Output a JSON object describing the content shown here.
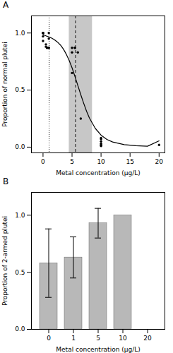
{
  "chart_data": [
    {
      "type": "line",
      "title": "A",
      "xlabel": "Metal concentration (μg/L)",
      "ylabel": "Proportion of normal plutei",
      "xlim": [
        -2,
        21
      ],
      "ylim": [
        -0.05,
        1.15
      ],
      "xticks": [
        0,
        5,
        10,
        15,
        20
      ],
      "yticks": [
        {
          "value": 0.0,
          "label": "0.0"
        },
        0.5,
        {
          "value": 1.0,
          "label": "1.0"
        }
      ],
      "span": {
        "x": [
          4.5,
          8.5
        ],
        "color": "#999999"
      },
      "vlines": [
        {
          "x": 5.6,
          "line_style": "dashed",
          "color": "#000000"
        },
        {
          "x": 1.05,
          "line_style": "dotted",
          "color": "#000000"
        }
      ],
      "series": [
        {
          "type": "line",
          "color": "#000000",
          "x": [
            0.01,
            0.5,
            1.0,
            1.5,
            2.0,
            2.5,
            3.0,
            3.5,
            4.0,
            4.5,
            5.0,
            5.5,
            6.0,
            6.5,
            7.0,
            7.5,
            8.0,
            9.0,
            10.0,
            11.0,
            12.0,
            14.0,
            16.0,
            18.0,
            20.0
          ],
          "values": [
            0.985,
            0.975,
            0.965,
            0.955,
            0.94,
            0.92,
            0.895,
            0.86,
            0.815,
            0.76,
            0.695,
            0.62,
            0.54,
            0.46,
            0.385,
            0.315,
            0.255,
            0.165,
            0.105,
            0.068,
            0.045,
            0.022,
            0.013,
            0.008,
            0.055
          ]
        },
        {
          "type": "scatter",
          "color": "#000000",
          "x": [
            0.0,
            0.0,
            0.0,
            0.0,
            0.0,
            0.5,
            0.5,
            0.7,
            0.7,
            1.0,
            1.0,
            1.0,
            1.0,
            5.0,
            5.0,
            5.0,
            5.5,
            5.5,
            6.0,
            6.5,
            10.0,
            10.0,
            10.0,
            10.0,
            10.0,
            10.0,
            20.0
          ],
          "values": [
            1.0,
            1.0,
            1.0,
            0.97,
            0.93,
            0.9,
            0.88,
            0.87,
            0.87,
            0.87,
            0.87,
            0.95,
            1.0,
            0.87,
            0.83,
            0.65,
            0.87,
            0.87,
            0.83,
            0.25,
            0.08,
            0.07,
            0.05,
            0.03,
            0.02,
            0.01,
            0.02
          ]
        }
      ]
    },
    {
      "type": "bar",
      "title": "B",
      "xlabel": "Metal concentration (μg/L)",
      "ylabel": "Proportion of 2-armed plutei",
      "categories": [
        "0",
        "1",
        "5",
        "10",
        "20"
      ],
      "values": [
        0.58,
        0.63,
        0.93,
        1.0,
        0.0
      ],
      "errors": [
        0.3,
        0.18,
        0.13,
        0.0,
        0.0
      ],
      "color": "#b8b8b8",
      "ylim": [
        0.0,
        1.2
      ],
      "yticks": [
        {
          "value": 0.0,
          "label": "0.0"
        },
        0.5,
        {
          "value": 1.0,
          "label": "1.0"
        }
      ]
    }
  ]
}
